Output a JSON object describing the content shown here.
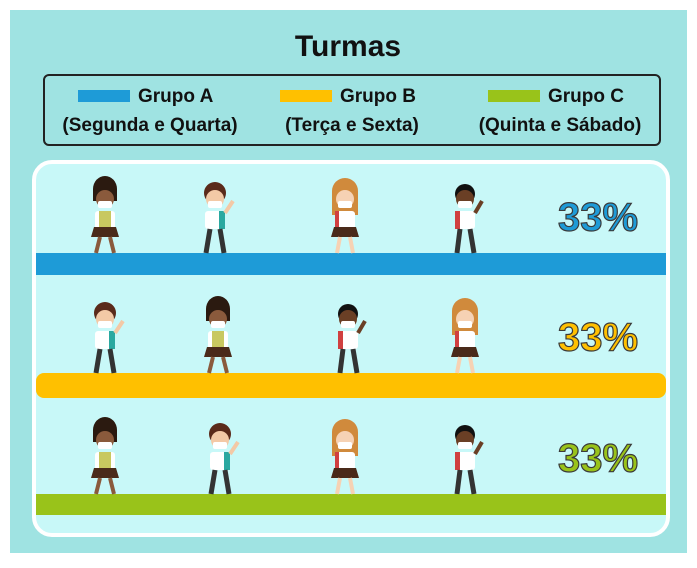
{
  "header": {
    "title": "Turmas"
  },
  "legend": [
    {
      "name": "Grupo A",
      "schedule": "(Segunda e Quarta)",
      "color": "#1e9bd7"
    },
    {
      "name": "Grupo B",
      "schedule": "(Terça e Sexta)",
      "color": "#ffc000"
    },
    {
      "name": "Grupo C",
      "schedule": "(Quinta e Sábado)",
      "color": "#99c31a"
    }
  ],
  "rows": [
    {
      "percent": "33%",
      "color": "#1e9bd7"
    },
    {
      "percent": "33%",
      "color": "#ffc000"
    },
    {
      "percent": "33%",
      "color": "#99c31a"
    }
  ]
}
